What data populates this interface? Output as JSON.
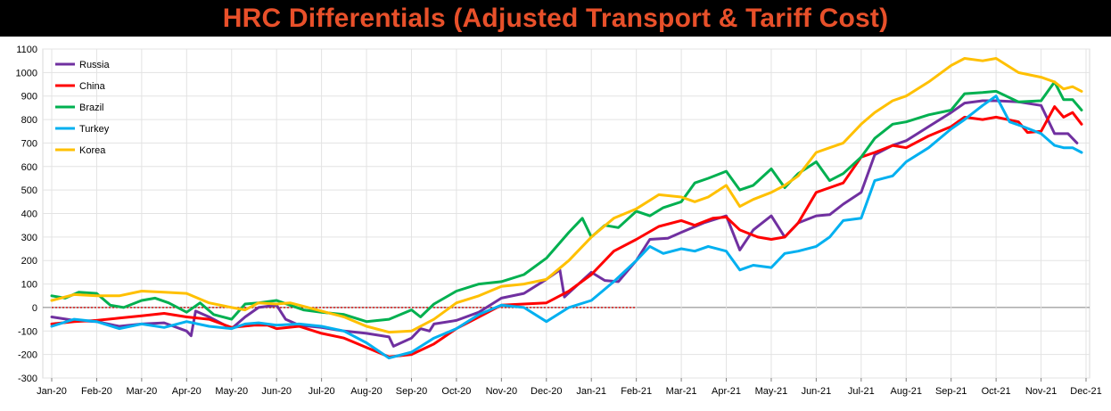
{
  "chart_data": {
    "type": "line",
    "title": "HRC Differentials (Adjusted Transport & Tariff Cost)",
    "xlabel": "",
    "ylabel": "",
    "ylim": [
      -300,
      1100
    ],
    "yticks": [
      -300,
      -200,
      -100,
      0,
      100,
      200,
      300,
      400,
      500,
      600,
      700,
      800,
      900,
      1000,
      1100
    ],
    "x_categories": [
      "Jan-20",
      "Feb-20",
      "Mar-20",
      "Apr-20",
      "May-20",
      "Jun-20",
      "Jul-20",
      "Aug-20",
      "Sep-20",
      "Oct-20",
      "Nov-20",
      "Dec-20",
      "Jan-21",
      "Feb-21",
      "Mar-21",
      "Apr-21",
      "May-21",
      "Jun-21",
      "Jul-21",
      "Aug-21",
      "Sep-21",
      "Oct-21",
      "Nov-21",
      "Dec-21"
    ],
    "x_range": [
      0,
      23
    ],
    "grid": true,
    "legend_position": "top-left",
    "zero_line": {
      "x_from": 0,
      "x_to": 13,
      "color": "#cc0000",
      "style": "dotted"
    },
    "series": [
      {
        "name": "Russia",
        "color": "#7030a0",
        "points": [
          [
            0,
            -40
          ],
          [
            0.5,
            -55
          ],
          [
            1,
            -60
          ],
          [
            1.5,
            -80
          ],
          [
            2,
            -70
          ],
          [
            2.5,
            -65
          ],
          [
            3,
            -100
          ],
          [
            3.1,
            -120
          ],
          [
            3.2,
            -15
          ],
          [
            3.5,
            -40
          ],
          [
            4,
            -90
          ],
          [
            4.3,
            -40
          ],
          [
            4.6,
            0
          ],
          [
            5,
            10
          ],
          [
            5.2,
            -50
          ],
          [
            5.5,
            -75
          ],
          [
            6,
            -85
          ],
          [
            6.5,
            -100
          ],
          [
            7,
            -110
          ],
          [
            7.5,
            -125
          ],
          [
            7.6,
            -165
          ],
          [
            8,
            -130
          ],
          [
            8.2,
            -90
          ],
          [
            8.4,
            -100
          ],
          [
            8.5,
            -70
          ],
          [
            9,
            -55
          ],
          [
            9.5,
            -20
          ],
          [
            10,
            40
          ],
          [
            10.5,
            60
          ],
          [
            11,
            120
          ],
          [
            11.3,
            160
          ],
          [
            11.4,
            45
          ],
          [
            12,
            150
          ],
          [
            12.3,
            115
          ],
          [
            12.6,
            110
          ],
          [
            13,
            200
          ],
          [
            13.3,
            290
          ],
          [
            13.7,
            295
          ],
          [
            14,
            320
          ],
          [
            14.5,
            360
          ],
          [
            15,
            390
          ],
          [
            15.3,
            245
          ],
          [
            15.6,
            330
          ],
          [
            16,
            390
          ],
          [
            16.3,
            300
          ],
          [
            16.6,
            360
          ],
          [
            17,
            390
          ],
          [
            17.3,
            395
          ],
          [
            17.6,
            440
          ],
          [
            18,
            490
          ],
          [
            18.3,
            650
          ],
          [
            18.7,
            690
          ],
          [
            19,
            710
          ],
          [
            19.5,
            770
          ],
          [
            20,
            830
          ],
          [
            20.3,
            870
          ],
          [
            20.7,
            880
          ],
          [
            21,
            880
          ],
          [
            21.5,
            875
          ],
          [
            22,
            860
          ],
          [
            22.3,
            740
          ],
          [
            22.6,
            740
          ],
          [
            22.8,
            700
          ]
        ]
      },
      {
        "name": "China",
        "color": "#ff0000",
        "points": [
          [
            0,
            -70
          ],
          [
            0.5,
            -60
          ],
          [
            1,
            -55
          ],
          [
            1.5,
            -45
          ],
          [
            2,
            -35
          ],
          [
            2.5,
            -25
          ],
          [
            3,
            -40
          ],
          [
            3.5,
            -50
          ],
          [
            4,
            -85
          ],
          [
            4.5,
            -75
          ],
          [
            4.8,
            -75
          ],
          [
            5,
            -90
          ],
          [
            5.5,
            -80
          ],
          [
            6,
            -110
          ],
          [
            6.5,
            -130
          ],
          [
            7,
            -170
          ],
          [
            7.5,
            -210
          ],
          [
            8,
            -200
          ],
          [
            8.5,
            -155
          ],
          [
            9,
            -90
          ],
          [
            9.5,
            -40
          ],
          [
            10,
            10
          ],
          [
            10.5,
            15
          ],
          [
            11,
            20
          ],
          [
            11.5,
            70
          ],
          [
            12,
            140
          ],
          [
            12.5,
            240
          ],
          [
            13,
            290
          ],
          [
            13.5,
            345
          ],
          [
            14,
            370
          ],
          [
            14.3,
            350
          ],
          [
            14.7,
            380
          ],
          [
            15,
            385
          ],
          [
            15.3,
            330
          ],
          [
            15.7,
            300
          ],
          [
            16,
            290
          ],
          [
            16.3,
            300
          ],
          [
            16.6,
            360
          ],
          [
            17,
            490
          ],
          [
            17.3,
            510
          ],
          [
            17.6,
            530
          ],
          [
            18,
            640
          ],
          [
            18.3,
            660
          ],
          [
            18.7,
            690
          ],
          [
            19,
            680
          ],
          [
            19.5,
            730
          ],
          [
            20,
            770
          ],
          [
            20.3,
            810
          ],
          [
            20.7,
            800
          ],
          [
            21,
            810
          ],
          [
            21.5,
            790
          ],
          [
            21.7,
            745
          ],
          [
            22,
            750
          ],
          [
            22.3,
            855
          ],
          [
            22.5,
            810
          ],
          [
            22.7,
            830
          ],
          [
            22.9,
            780
          ]
        ]
      },
      {
        "name": "Brazil",
        "color": "#00b050",
        "points": [
          [
            0,
            50
          ],
          [
            0.3,
            40
          ],
          [
            0.6,
            65
          ],
          [
            1,
            60
          ],
          [
            1.3,
            10
          ],
          [
            1.6,
            0
          ],
          [
            2,
            30
          ],
          [
            2.3,
            40
          ],
          [
            2.6,
            20
          ],
          [
            3,
            -20
          ],
          [
            3.3,
            20
          ],
          [
            3.6,
            -30
          ],
          [
            4,
            -50
          ],
          [
            4.3,
            15
          ],
          [
            4.6,
            20
          ],
          [
            5,
            30
          ],
          [
            5.3,
            10
          ],
          [
            5.6,
            -10
          ],
          [
            6,
            -20
          ],
          [
            6.5,
            -30
          ],
          [
            7,
            -60
          ],
          [
            7.5,
            -50
          ],
          [
            8,
            -10
          ],
          [
            8.2,
            -40
          ],
          [
            8.5,
            15
          ],
          [
            9,
            70
          ],
          [
            9.5,
            100
          ],
          [
            10,
            110
          ],
          [
            10.5,
            140
          ],
          [
            11,
            210
          ],
          [
            11.5,
            320
          ],
          [
            11.8,
            380
          ],
          [
            12,
            300
          ],
          [
            12.3,
            350
          ],
          [
            12.6,
            340
          ],
          [
            13,
            410
          ],
          [
            13.3,
            390
          ],
          [
            13.6,
            425
          ],
          [
            14,
            450
          ],
          [
            14.3,
            530
          ],
          [
            14.6,
            550
          ],
          [
            15,
            580
          ],
          [
            15.3,
            500
          ],
          [
            15.6,
            520
          ],
          [
            16,
            590
          ],
          [
            16.3,
            510
          ],
          [
            16.6,
            570
          ],
          [
            17,
            620
          ],
          [
            17.3,
            540
          ],
          [
            17.6,
            570
          ],
          [
            18,
            640
          ],
          [
            18.3,
            720
          ],
          [
            18.7,
            780
          ],
          [
            19,
            790
          ],
          [
            19.5,
            820
          ],
          [
            20,
            840
          ],
          [
            20.3,
            910
          ],
          [
            20.7,
            915
          ],
          [
            21,
            920
          ],
          [
            21.5,
            875
          ],
          [
            22,
            880
          ],
          [
            22.3,
            960
          ],
          [
            22.5,
            885
          ],
          [
            22.7,
            885
          ],
          [
            22.9,
            840
          ]
        ]
      },
      {
        "name": "Turkey",
        "color": "#00b0f0",
        "points": [
          [
            0,
            -80
          ],
          [
            0.5,
            -50
          ],
          [
            1,
            -60
          ],
          [
            1.5,
            -90
          ],
          [
            2,
            -70
          ],
          [
            2.5,
            -85
          ],
          [
            3,
            -60
          ],
          [
            3.5,
            -80
          ],
          [
            4,
            -90
          ],
          [
            4.3,
            -70
          ],
          [
            4.6,
            -65
          ],
          [
            5,
            -75
          ],
          [
            5.5,
            -70
          ],
          [
            6,
            -80
          ],
          [
            6.5,
            -100
          ],
          [
            7,
            -150
          ],
          [
            7.5,
            -215
          ],
          [
            8,
            -190
          ],
          [
            8.5,
            -130
          ],
          [
            9,
            -90
          ],
          [
            9.5,
            -30
          ],
          [
            10,
            10
          ],
          [
            10.5,
            0
          ],
          [
            11,
            -60
          ],
          [
            11.5,
            0
          ],
          [
            12,
            30
          ],
          [
            12.5,
            110
          ],
          [
            13,
            200
          ],
          [
            13.3,
            260
          ],
          [
            13.6,
            230
          ],
          [
            14,
            250
          ],
          [
            14.3,
            240
          ],
          [
            14.6,
            260
          ],
          [
            15,
            240
          ],
          [
            15.3,
            160
          ],
          [
            15.6,
            180
          ],
          [
            16,
            170
          ],
          [
            16.3,
            230
          ],
          [
            16.6,
            240
          ],
          [
            17,
            260
          ],
          [
            17.3,
            300
          ],
          [
            17.6,
            370
          ],
          [
            18,
            380
          ],
          [
            18.3,
            540
          ],
          [
            18.7,
            560
          ],
          [
            19,
            620
          ],
          [
            19.5,
            680
          ],
          [
            20,
            760
          ],
          [
            20.3,
            800
          ],
          [
            20.7,
            860
          ],
          [
            21,
            900
          ],
          [
            21.3,
            790
          ],
          [
            21.6,
            770
          ],
          [
            22,
            740
          ],
          [
            22.3,
            690
          ],
          [
            22.5,
            680
          ],
          [
            22.7,
            680
          ],
          [
            22.9,
            660
          ]
        ]
      },
      {
        "name": "Korea",
        "color": "#ffc000",
        "points": [
          [
            0,
            30
          ],
          [
            0.5,
            55
          ],
          [
            1,
            50
          ],
          [
            1.5,
            50
          ],
          [
            2,
            70
          ],
          [
            2.5,
            65
          ],
          [
            3,
            60
          ],
          [
            3.5,
            20
          ],
          [
            4,
            0
          ],
          [
            4.3,
            -10
          ],
          [
            4.6,
            20
          ],
          [
            5,
            15
          ],
          [
            5.3,
            20
          ],
          [
            5.6,
            5
          ],
          [
            6,
            -15
          ],
          [
            6.5,
            -40
          ],
          [
            7,
            -80
          ],
          [
            7.5,
            -105
          ],
          [
            8,
            -100
          ],
          [
            8.5,
            -50
          ],
          [
            9,
            20
          ],
          [
            9.5,
            50
          ],
          [
            10,
            90
          ],
          [
            10.5,
            100
          ],
          [
            11,
            120
          ],
          [
            11.5,
            200
          ],
          [
            12,
            300
          ],
          [
            12.5,
            380
          ],
          [
            13,
            420
          ],
          [
            13.5,
            480
          ],
          [
            14,
            470
          ],
          [
            14.3,
            450
          ],
          [
            14.6,
            470
          ],
          [
            15,
            520
          ],
          [
            15.3,
            430
          ],
          [
            15.6,
            460
          ],
          [
            16,
            490
          ],
          [
            16.3,
            520
          ],
          [
            16.6,
            560
          ],
          [
            17,
            660
          ],
          [
            17.3,
            680
          ],
          [
            17.6,
            700
          ],
          [
            18,
            780
          ],
          [
            18.3,
            830
          ],
          [
            18.7,
            880
          ],
          [
            19,
            900
          ],
          [
            19.5,
            960
          ],
          [
            20,
            1030
          ],
          [
            20.3,
            1060
          ],
          [
            20.7,
            1050
          ],
          [
            21,
            1060
          ],
          [
            21.5,
            1000
          ],
          [
            22,
            980
          ],
          [
            22.3,
            960
          ],
          [
            22.5,
            930
          ],
          [
            22.7,
            940
          ],
          [
            22.9,
            920
          ]
        ]
      }
    ]
  }
}
